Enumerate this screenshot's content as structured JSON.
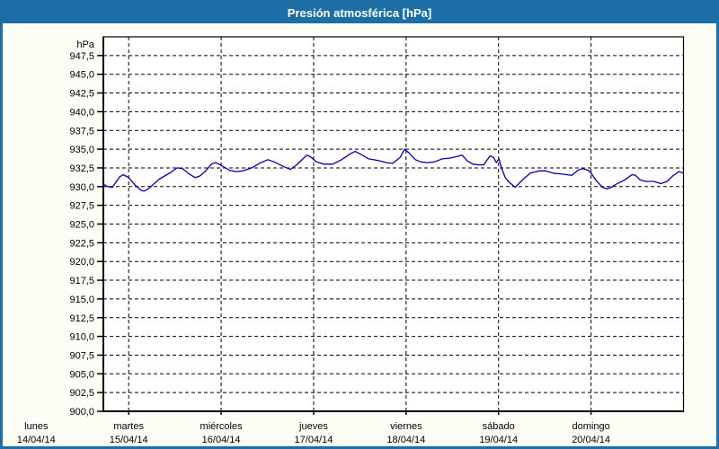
{
  "window": {
    "title": "Presión atmosférica [hPa]"
  },
  "colors": {
    "title_bar": "#1d6ea6",
    "title_text": "#ffffff",
    "window_border": "#1d6ea6",
    "background": "#fcfdf5",
    "plot_background": "#ffffff",
    "curve": "#0000aa",
    "grid": "#000000",
    "axis": "#000000",
    "text": "#000000"
  },
  "chart_data": {
    "type": "line",
    "title": "Presión atmosférica [hPa]",
    "unit_label": "hPa",
    "grid": true,
    "legend": false,
    "y_axis": {
      "min": 900,
      "max": 950,
      "tick_step": 2.5,
      "ticks": [
        {
          "v": 947.5,
          "label": "947,5"
        },
        {
          "v": 945.0,
          "label": "945,0"
        },
        {
          "v": 942.5,
          "label": "942,5"
        },
        {
          "v": 940.0,
          "label": "940,0"
        },
        {
          "v": 937.5,
          "label": "937,5"
        },
        {
          "v": 935.0,
          "label": "935,0"
        },
        {
          "v": 932.5,
          "label": "932,5"
        },
        {
          "v": 930.0,
          "label": "930,0"
        },
        {
          "v": 927.5,
          "label": "927,5"
        },
        {
          "v": 925.0,
          "label": "925,0"
        },
        {
          "v": 922.5,
          "label": "922,5"
        },
        {
          "v": 920.0,
          "label": "920,0"
        },
        {
          "v": 917.5,
          "label": "917,5"
        },
        {
          "v": 915.0,
          "label": "915,0"
        },
        {
          "v": 912.5,
          "label": "912,5"
        },
        {
          "v": 910.0,
          "label": "910,0"
        },
        {
          "v": 907.5,
          "label": "907,5"
        },
        {
          "v": 905.0,
          "label": "905,0"
        },
        {
          "v": 902.5,
          "label": "902,5"
        },
        {
          "v": 900.0,
          "label": "900,0"
        }
      ]
    },
    "x_axis": {
      "xlim_days": [
        0.726,
        7.0
      ],
      "grid_days": [
        1,
        2,
        3,
        4,
        5,
        6
      ],
      "days": [
        {
          "day": 0,
          "name": "lunes",
          "date": "14/04/14"
        },
        {
          "day": 1,
          "name": "martes",
          "date": "15/04/14"
        },
        {
          "day": 2,
          "name": "miércoles",
          "date": "16/04/14"
        },
        {
          "day": 3,
          "name": "jueves",
          "date": "17/04/14"
        },
        {
          "day": 4,
          "name": "viernes",
          "date": "18/04/14"
        },
        {
          "day": 5,
          "name": "sábado",
          "date": "19/04/14"
        },
        {
          "day": 6,
          "name": "domingo",
          "date": "20/04/14"
        }
      ]
    },
    "series": [
      {
        "name": "Presión atmosférica",
        "color": "#0000aa",
        "points": [
          [
            0.727,
            930.3
          ],
          [
            0.776,
            930.0
          ],
          [
            0.824,
            929.9
          ],
          [
            0.902,
            931.3
          ],
          [
            0.941,
            931.6
          ],
          [
            1.0,
            931.2
          ],
          [
            1.068,
            930.2
          ],
          [
            1.135,
            929.5
          ],
          [
            1.165,
            929.4
          ],
          [
            1.213,
            929.7
          ],
          [
            1.33,
            931.0
          ],
          [
            1.456,
            931.9
          ],
          [
            1.524,
            932.5
          ],
          [
            1.583,
            932.4
          ],
          [
            1.651,
            931.7
          ],
          [
            1.719,
            931.2
          ],
          [
            1.767,
            931.4
          ],
          [
            1.826,
            932.0
          ],
          [
            1.894,
            933.0
          ],
          [
            1.942,
            933.2
          ],
          [
            2.02,
            932.7
          ],
          [
            2.088,
            932.2
          ],
          [
            2.156,
            932.0
          ],
          [
            2.234,
            932.1
          ],
          [
            2.331,
            932.5
          ],
          [
            2.429,
            933.2
          ],
          [
            2.506,
            933.6
          ],
          [
            2.574,
            933.3
          ],
          [
            2.672,
            932.7
          ],
          [
            2.749,
            932.3
          ],
          [
            2.817,
            932.9
          ],
          [
            2.885,
            933.7
          ],
          [
            2.924,
            934.2
          ],
          [
            2.963,
            934.0
          ],
          [
            3.031,
            933.3
          ],
          [
            3.109,
            933.0
          ],
          [
            3.206,
            933.0
          ],
          [
            3.303,
            933.6
          ],
          [
            3.4,
            934.4
          ],
          [
            3.449,
            934.7
          ],
          [
            3.527,
            934.2
          ],
          [
            3.595,
            933.7
          ],
          [
            3.692,
            933.5
          ],
          [
            3.789,
            933.2
          ],
          [
            3.857,
            933.1
          ],
          [
            3.935,
            933.9
          ],
          [
            3.984,
            935.0
          ],
          [
            4.032,
            934.5
          ],
          [
            4.1,
            933.6
          ],
          [
            4.159,
            933.3
          ],
          [
            4.227,
            933.2
          ],
          [
            4.304,
            933.3
          ],
          [
            4.392,
            933.7
          ],
          [
            4.47,
            933.8
          ],
          [
            4.547,
            934.0
          ],
          [
            4.606,
            934.2
          ],
          [
            4.664,
            933.4
          ],
          [
            4.723,
            933.0
          ],
          [
            4.791,
            932.9
          ],
          [
            4.839,
            932.9
          ],
          [
            4.907,
            934.1
          ],
          [
            4.946,
            933.9
          ],
          [
            4.975,
            933.2
          ],
          [
            5.005,
            933.7
          ],
          [
            5.034,
            932.4
          ],
          [
            5.073,
            931.2
          ],
          [
            5.112,
            930.6
          ],
          [
            5.151,
            930.2
          ],
          [
            5.18,
            929.9
          ],
          [
            5.219,
            930.4
          ],
          [
            5.277,
            931.1
          ],
          [
            5.345,
            931.8
          ],
          [
            5.442,
            932.1
          ],
          [
            5.51,
            932.1
          ],
          [
            5.588,
            931.8
          ],
          [
            5.666,
            931.7
          ],
          [
            5.734,
            931.6
          ],
          [
            5.792,
            931.5
          ],
          [
            5.86,
            932.2
          ],
          [
            5.909,
            932.4
          ],
          [
            5.967,
            932.2
          ],
          [
            5.996,
            931.9
          ],
          [
            6.055,
            930.8
          ],
          [
            6.123,
            929.9
          ],
          [
            6.171,
            929.7
          ],
          [
            6.22,
            929.9
          ],
          [
            6.268,
            930.3
          ],
          [
            6.366,
            930.9
          ],
          [
            6.443,
            931.6
          ],
          [
            6.482,
            931.5
          ],
          [
            6.531,
            930.9
          ],
          [
            6.589,
            930.7
          ],
          [
            6.677,
            930.7
          ],
          [
            6.755,
            930.4
          ],
          [
            6.823,
            930.7
          ],
          [
            6.881,
            931.4
          ],
          [
            6.949,
            932.0
          ],
          [
            6.998,
            931.8
          ]
        ]
      }
    ]
  }
}
